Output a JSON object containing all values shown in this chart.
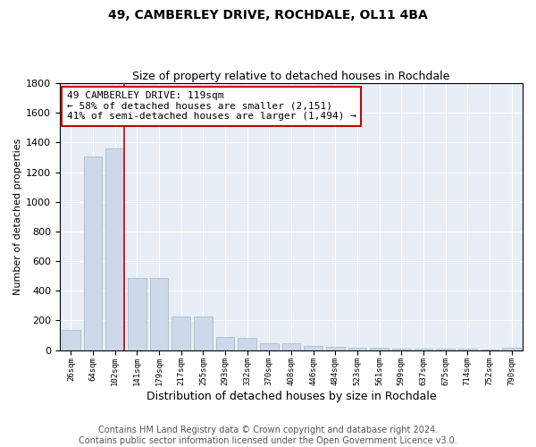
{
  "title": "49, CAMBERLEY DRIVE, ROCHDALE, OL11 4BA",
  "subtitle": "Size of property relative to detached houses in Rochdale",
  "xlabel": "Distribution of detached houses by size in Rochdale",
  "ylabel": "Number of detached properties",
  "footer": "Contains HM Land Registry data © Crown copyright and database right 2024.\nContains public sector information licensed under the Open Government Licence v3.0.",
  "bar_labels": [
    "26sqm",
    "64sqm",
    "102sqm",
    "141sqm",
    "179sqm",
    "217sqm",
    "255sqm",
    "293sqm",
    "332sqm",
    "370sqm",
    "408sqm",
    "446sqm",
    "484sqm",
    "523sqm",
    "561sqm",
    "599sqm",
    "637sqm",
    "675sqm",
    "714sqm",
    "752sqm",
    "790sqm"
  ],
  "bar_values": [
    138,
    1307,
    1363,
    488,
    487,
    228,
    226,
    85,
    84,
    48,
    47,
    25,
    24,
    17,
    16,
    10,
    9,
    8,
    7,
    5,
    14
  ],
  "bar_color": "#cdd9e8",
  "bar_edge_color": "#a8bdd0",
  "annotation_text_line1": "49 CAMBERLEY DRIVE: 119sqm",
  "annotation_text_line2": "← 58% of detached houses are smaller (2,151)",
  "annotation_text_line3": "41% of semi-detached houses are larger (1,494) →",
  "vline_x": 2.42,
  "vline_color": "#cc0000",
  "ylim": [
    0,
    1800
  ],
  "bg_color": "#e8eef5",
  "title_fontsize": 10,
  "subtitle_fontsize": 9,
  "annotation_fontsize": 8,
  "footer_fontsize": 7,
  "ylabel_fontsize": 8,
  "xlabel_fontsize": 9
}
